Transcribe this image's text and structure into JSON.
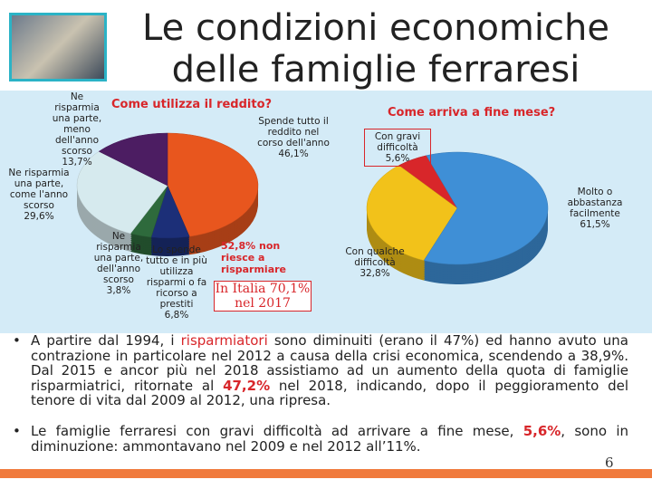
{
  "title": [
    "Le condizioni economiche",
    "delle famiglie ferraresi"
  ],
  "chart_data": [
    {
      "type": "pie",
      "title": "Come utilizza il reddito?",
      "categories": [
        "Spende tutto il reddito nel corso dell'anno",
        "Lo spende tutto e in più utilizza risparmi o fa ricorso a prestiti",
        "Ne risparmia una parte, dell'anno scorso",
        "Ne risparmia una parte, come l'anno scorso",
        "Ne risparmia una parte, meno dell'anno scorso"
      ],
      "values": [
        46.1,
        6.8,
        3.8,
        29.6,
        13.7
      ],
      "value_labels": [
        "46,1%",
        "6,8%",
        "3,8%",
        "29,6%",
        "13,7%"
      ],
      "colors": [
        "#e8561e",
        "#1c2f78",
        "#2e6a3c",
        "#d6eaee",
        "#4c1d62"
      ],
      "annotations": [
        "52,8% non riesce a risparmiare",
        "In Italia 70,1% nel 2017"
      ]
    },
    {
      "type": "pie",
      "title": "Come arriva a fine mese?",
      "categories": [
        "Con gravi difficoltà",
        "Con qualche difficoltà",
        "Molto o abbastanza facilmente"
      ],
      "values": [
        5.6,
        32.8,
        61.5
      ],
      "value_labels": [
        "5,6%",
        "32,8%",
        "61,5%"
      ],
      "colors": [
        "#d8262a",
        "#f2c21a",
        "#3f8fd6"
      ]
    }
  ],
  "bullets": [
    [
      "A partire dal 1994, i ",
      "risparmiatori",
      " sono diminuiti (erano il 47%) ed hanno avuto una contrazione in particolare nel 2012 a causa della crisi economica, scendendo a 38,9%. Dal 2015 e ancor più nel 2018 assistiamo ad un aumento della quota di famiglie risparmiatrici, ritornate al ",
      "47,2%",
      " nel 2018, indicando, dopo il peggioramento del tenore di vita dal 2009 al 2012, una ripresa."
    ],
    [
      "Le famiglie ferraresi con gravi difficoltà ad arrivare a fine mese, ",
      "5,6%",
      ", sono in diminuzione: ammontavano nel 2009 e nel 2012 all’11%."
    ]
  ],
  "page_number": "6"
}
